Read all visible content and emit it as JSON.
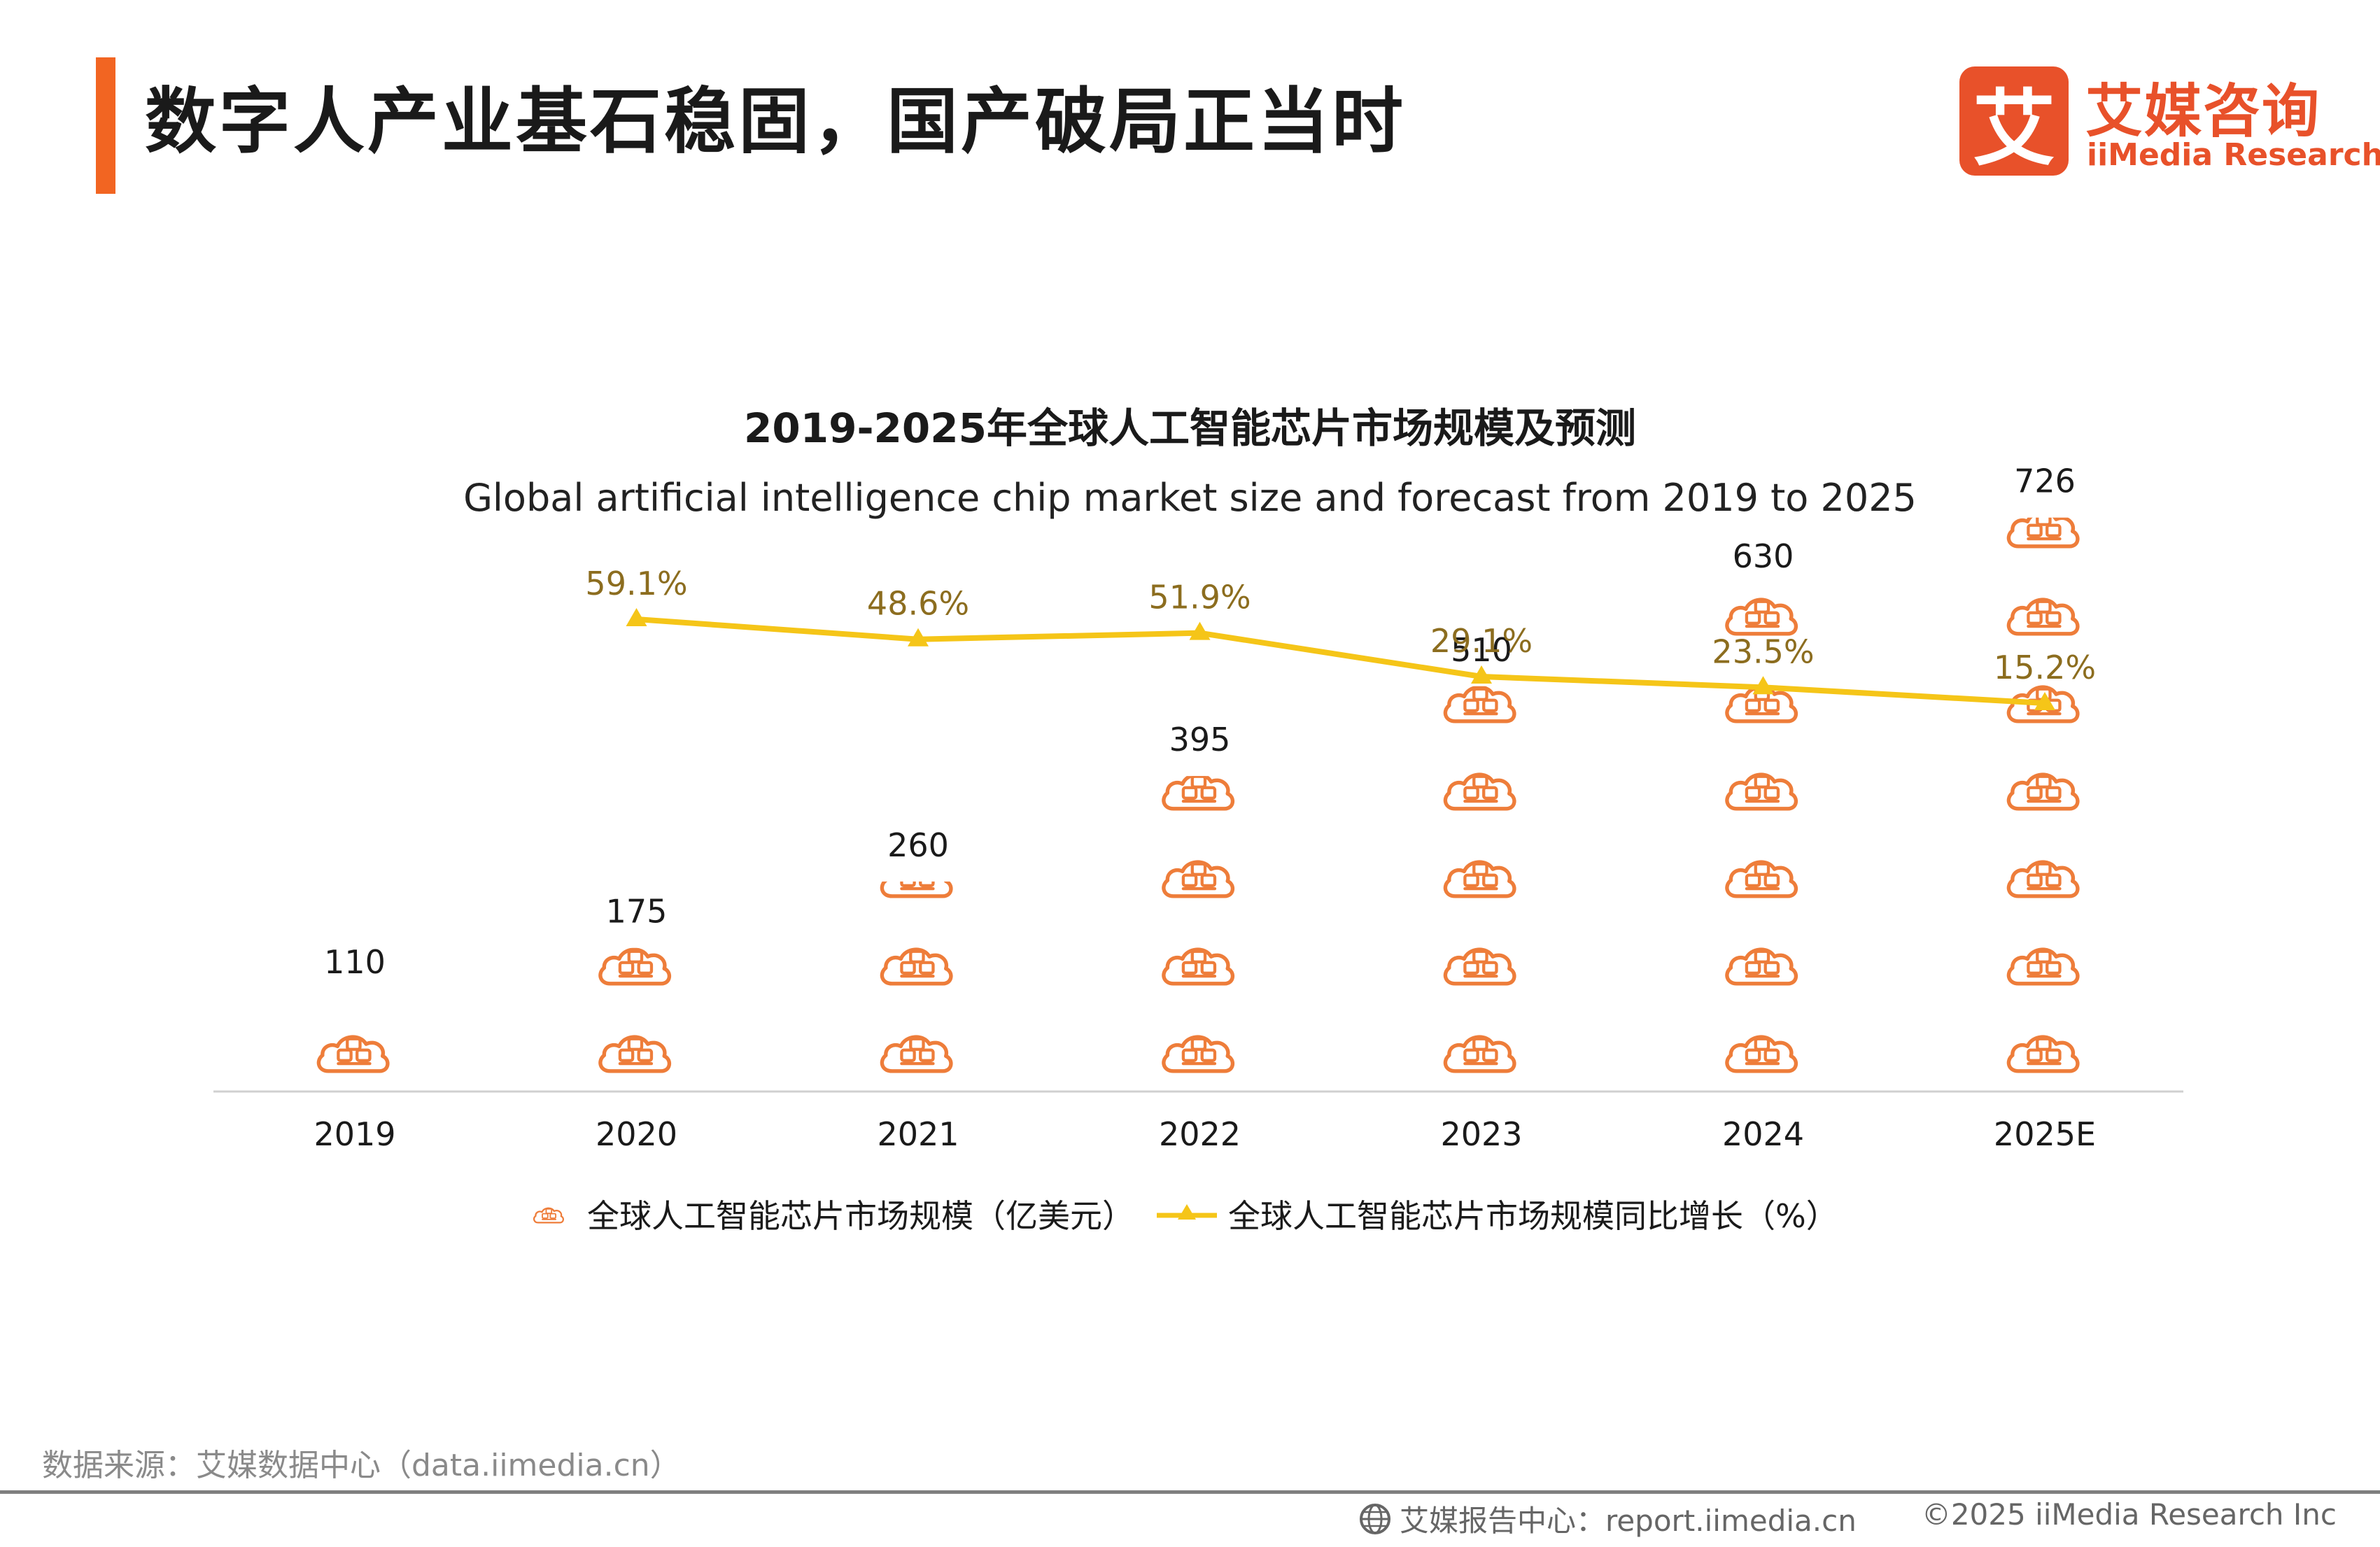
{
  "header": {
    "title": "数字人产业基石稳固，国产破局正当时",
    "accent_color": "#f26522"
  },
  "logo": {
    "mark": "艾",
    "cn": "艾媒咨询",
    "en": "iiMedia Research",
    "color": "#e8512a"
  },
  "chart_data": {
    "type": "bar",
    "title": "2019-2025年全球人工智能芯片市场规模及预测",
    "subtitle": "Global artificial intelligence chip market size and forecast from 2019 to 2025",
    "categories": [
      "2019",
      "2020",
      "2021",
      "2022",
      "2023",
      "2024",
      "2025E"
    ],
    "series": [
      {
        "name": "全球人工智能芯片市场规模（亿美元）",
        "type": "pictograph-bar",
        "icon": "cloud-chip-icon",
        "color": "#ee7d3a",
        "values": [
          110,
          175,
          260,
          395,
          510,
          630,
          726
        ],
        "labels": [
          "110",
          "175",
          "260",
          "395",
          "510",
          "630",
          "726"
        ]
      },
      {
        "name": "全球人工智能芯片市场规模同比增长（%）",
        "type": "line",
        "marker": "triangle",
        "color": "#f5c518",
        "label_color": "#8c6d1f",
        "values": [
          null,
          59.1,
          48.6,
          51.9,
          29.1,
          23.5,
          15.2
        ],
        "labels": [
          "",
          "59.1%",
          "48.6%",
          "51.9%",
          "29.1%",
          "23.5%",
          "15.2%"
        ]
      }
    ],
    "xlabel": "",
    "ylabel": "",
    "ylim": [
      0,
      800
    ],
    "grid": false,
    "legend": "bottom-center"
  },
  "footer": {
    "source": "数据来源：艾媒数据中心（data.iimedia.cn）",
    "report_center": "艾媒报告中心：report.iimedia.cn",
    "copyright": "©2025  iiMedia Research  Inc"
  }
}
